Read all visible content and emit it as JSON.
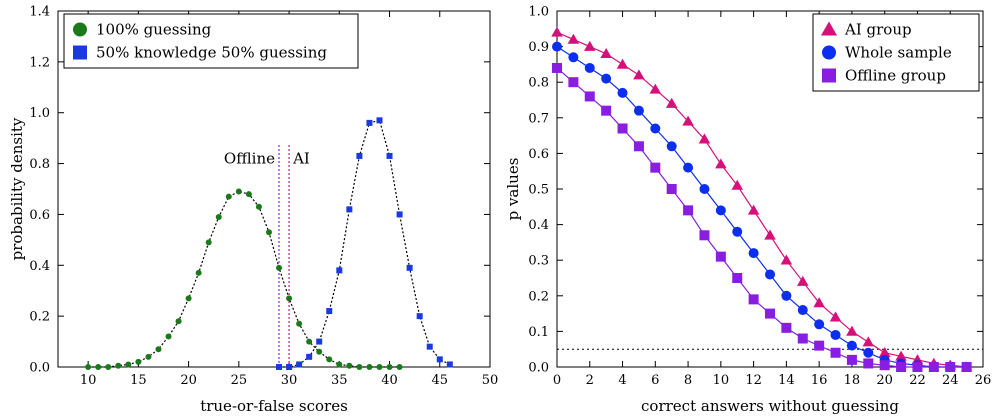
{
  "chart_data": [
    {
      "type": "scatter",
      "xlabel": "true-or-false scores",
      "ylabel": "probability density",
      "xlim": [
        7,
        50
      ],
      "ylim": [
        0,
        1.4
      ],
      "xticks": [
        10,
        15,
        20,
        25,
        30,
        35,
        40,
        45,
        50
      ],
      "yticks": [
        0.0,
        0.2,
        0.4,
        0.6,
        0.8,
        1.0,
        1.2,
        1.4
      ],
      "ytick_labels": [
        "0.0",
        "0.2",
        "0.4",
        "0.6",
        "0.8",
        "1.0",
        "1.2",
        "1.4"
      ],
      "grid": false,
      "legend_position": "top-left",
      "series": [
        {
          "name": "100% guessing",
          "marker": "circle",
          "color": "#1a7a1a",
          "line": "dotted",
          "x": [
            10,
            11,
            12,
            13,
            14,
            15,
            16,
            17,
            18,
            19,
            20,
            21,
            22,
            23,
            24,
            25,
            26,
            27,
            28,
            29,
            30,
            31,
            32,
            33,
            34,
            35,
            36,
            37,
            38,
            39,
            40,
            41
          ],
          "y": [
            0.0,
            0.0,
            0.0,
            0.005,
            0.01,
            0.02,
            0.04,
            0.07,
            0.12,
            0.18,
            0.27,
            0.37,
            0.49,
            0.59,
            0.67,
            0.69,
            0.68,
            0.63,
            0.53,
            0.39,
            0.27,
            0.17,
            0.1,
            0.06,
            0.03,
            0.01,
            0.005,
            0.0,
            0.0,
            0.0,
            0.0,
            0.0
          ]
        },
        {
          "name": "50% knowledge 50% guessing",
          "marker": "square",
          "color": "#1a3adf",
          "line": "dotted",
          "x": [
            29,
            30,
            31,
            32,
            33,
            34,
            35,
            36,
            37,
            38,
            39,
            40,
            41,
            42,
            43,
            44,
            45,
            46
          ],
          "y": [
            0.0,
            0.0,
            0.01,
            0.04,
            0.1,
            0.22,
            0.38,
            0.62,
            0.83,
            0.96,
            0.97,
            0.83,
            0.6,
            0.39,
            0.2,
            0.08,
            0.03,
            0.01
          ]
        }
      ],
      "markers": [
        {
          "label": "Offline",
          "x": 29,
          "color": "#8a2be2"
        },
        {
          "label": "AI",
          "x": 30,
          "color": "#d6107a"
        }
      ]
    },
    {
      "type": "line",
      "xlabel": "correct answers without guessing",
      "ylabel": "p values",
      "xlim": [
        0,
        26
      ],
      "ylim": [
        0,
        1.0
      ],
      "xticks": [
        0,
        2,
        4,
        6,
        8,
        10,
        12,
        14,
        16,
        18,
        20,
        22,
        24,
        26
      ],
      "yticks": [
        0.0,
        0.1,
        0.2,
        0.3,
        0.4,
        0.5,
        0.6,
        0.7,
        0.8,
        0.9,
        1.0
      ],
      "ytick_labels": [
        "0.0",
        "0.1",
        "0.2",
        "0.3",
        "0.4",
        "0.5",
        "0.6",
        "0.7",
        "0.8",
        "0.9",
        "1.0"
      ],
      "grid": false,
      "legend_position": "top-right",
      "reference_line": {
        "y": 0.05,
        "style": "dotted"
      },
      "x": [
        0,
        1,
        2,
        3,
        4,
        5,
        6,
        7,
        8,
        9,
        10,
        11,
        12,
        13,
        14,
        15,
        16,
        17,
        18,
        19,
        20,
        21,
        22,
        23,
        24,
        25
      ],
      "series": [
        {
          "name": "AI group",
          "marker": "triangle",
          "color": "#d6107a",
          "y": [
            0.94,
            0.92,
            0.9,
            0.88,
            0.85,
            0.82,
            0.78,
            0.74,
            0.69,
            0.64,
            0.57,
            0.51,
            0.44,
            0.37,
            0.3,
            0.24,
            0.18,
            0.14,
            0.1,
            0.07,
            0.04,
            0.03,
            0.02,
            0.01,
            0.005,
            0.0
          ]
        },
        {
          "name": "Whole sample",
          "marker": "circle",
          "color": "#0b2ef0",
          "y": [
            0.9,
            0.87,
            0.84,
            0.81,
            0.77,
            0.72,
            0.67,
            0.62,
            0.56,
            0.5,
            0.44,
            0.38,
            0.32,
            0.26,
            0.2,
            0.16,
            0.12,
            0.09,
            0.06,
            0.04,
            0.02,
            0.01,
            0.005,
            0.0,
            0.0,
            0.0
          ]
        },
        {
          "name": "Offline group",
          "marker": "square",
          "color": "#8a1ee0",
          "y": [
            0.84,
            0.8,
            0.76,
            0.72,
            0.67,
            0.62,
            0.56,
            0.5,
            0.44,
            0.37,
            0.31,
            0.25,
            0.19,
            0.15,
            0.11,
            0.08,
            0.06,
            0.04,
            0.02,
            0.01,
            0.005,
            0.0,
            0.0,
            0.0,
            0.0,
            0.0
          ]
        }
      ]
    }
  ]
}
